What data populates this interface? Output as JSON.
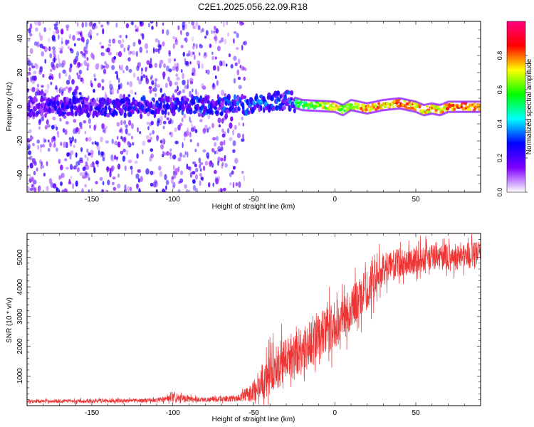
{
  "figure": {
    "title": "C2E1.2025.056.22.09.R18"
  },
  "chart_data": [
    {
      "type": "heatmap",
      "xlabel": "Height of straight line (km)",
      "ylabel": "Frequency (Hz)",
      "xlim": [
        -190,
        90
      ],
      "ylim": [
        -50,
        50
      ],
      "xticks": [
        -150,
        -100,
        -50,
        0,
        50
      ],
      "yticks": [
        -40,
        -20,
        0,
        20,
        40
      ],
      "colorbar": {
        "label": "Normalized spectral amplitude",
        "range": [
          0,
          1
        ],
        "ticks": [
          "0.0",
          "0.2",
          "0.4",
          "0.6",
          "0.8"
        ],
        "colors": [
          "#ffffff",
          "#8000ff",
          "#0000ff",
          "#00ffff",
          "#00ff00",
          "#ffff00",
          "#ff0000",
          "#ff0080"
        ]
      },
      "ridge": {
        "x": [
          -190,
          -150,
          -100,
          -60,
          -45,
          -30,
          -20,
          0,
          5,
          10,
          20,
          30,
          40,
          50,
          55,
          60,
          65,
          70,
          80,
          90
        ],
        "freq": [
          0,
          0,
          0,
          1,
          2,
          4,
          1,
          0,
          -2,
          1,
          -1,
          1,
          2,
          0,
          -2,
          -1,
          -2,
          0,
          0,
          0
        ],
        "amplitude": [
          0.3,
          0.35,
          0.45,
          0.5,
          0.55,
          0.5,
          0.6,
          0.85,
          0.7,
          0.8,
          0.85,
          0.85,
          0.9,
          0.85,
          0.8,
          0.85,
          0.8,
          0.9,
          0.9,
          0.9
        ]
      },
      "noise_extent": {
        "x_end": -55,
        "freq_abs_max": 50
      }
    },
    {
      "type": "line",
      "xlabel": "Height of straight line (km)",
      "ylabel": "SNR (10 * v/v)",
      "xlim": [
        -190,
        90
      ],
      "ylim": [
        0,
        5800
      ],
      "xticks": [
        -150,
        -100,
        -50,
        0,
        50
      ],
      "yticks": [
        1000,
        2000,
        3000,
        4000,
        5000
      ],
      "color": "#ee3333",
      "envelope": {
        "x": [
          -190,
          -150,
          -110,
          -100,
          -80,
          -60,
          -55,
          -50,
          -45,
          -40,
          -30,
          -20,
          -10,
          0,
          10,
          20,
          25,
          30,
          40,
          50,
          60,
          70,
          80,
          90
        ],
        "mean": [
          150,
          160,
          180,
          250,
          200,
          250,
          350,
          500,
          800,
          1100,
          1600,
          1900,
          2300,
          2700,
          3300,
          3900,
          4300,
          4600,
          4800,
          4900,
          5000,
          5000,
          5050,
          5100
        ],
        "spread": [
          60,
          70,
          80,
          160,
          90,
          120,
          250,
          400,
          700,
          800,
          900,
          900,
          900,
          900,
          800,
          800,
          700,
          600,
          550,
          500,
          500,
          500,
          500,
          500
        ]
      }
    }
  ]
}
